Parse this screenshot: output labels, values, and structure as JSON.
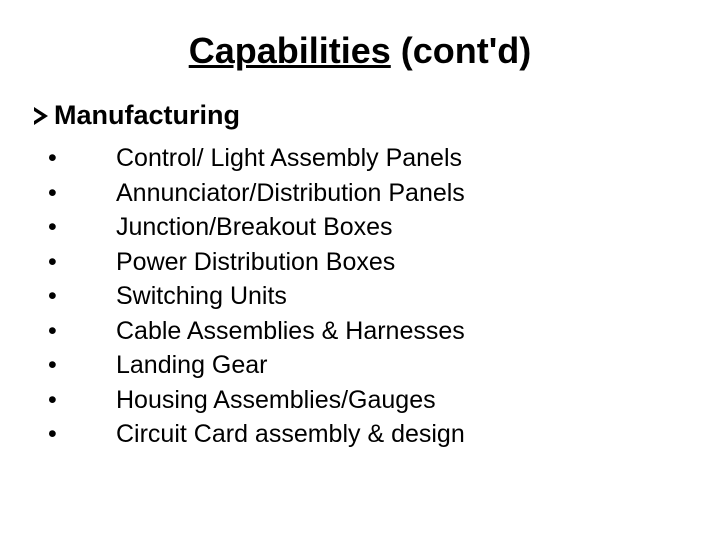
{
  "title": {
    "underlined": "Capabilities",
    "rest": " (cont'd)"
  },
  "section": {
    "header": "Manufacturing",
    "items": [
      "Control/ Light Assembly Panels",
      "Annunciator/Distribution Panels",
      "Junction/Breakout Boxes",
      "Power Distribution Boxes",
      "Switching Units",
      "Cable Assemblies & Harnesses",
      "Landing Gear",
      "Housing Assemblies/Gauges",
      "Circuit Card assembly & design"
    ]
  },
  "styling": {
    "background_color": "#ffffff",
    "text_color": "#000000",
    "title_fontsize": 36,
    "section_header_fontsize": 27,
    "item_fontsize": 25,
    "font_family": "Arial"
  }
}
